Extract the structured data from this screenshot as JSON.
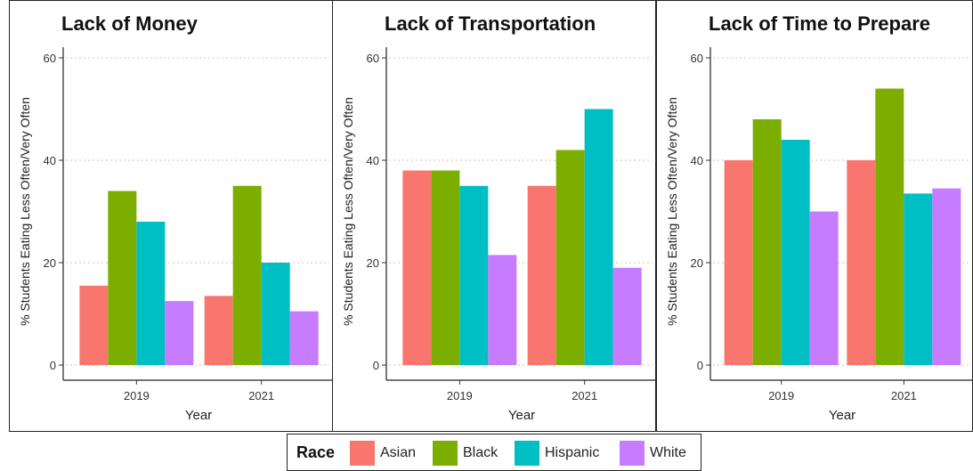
{
  "chart_data": [
    {
      "type": "bar",
      "title": "Lack of Money",
      "xlabel": "Year",
      "ylabel": "% Students Eating Less Often/Very Often",
      "categories": [
        "2019",
        "2021"
      ],
      "yticks": [
        "0",
        "20",
        "40",
        "60"
      ],
      "ylim": [
        0,
        62
      ],
      "grid": "horizontal dotted",
      "series": [
        {
          "name": "Asian",
          "values": [
            15.5,
            13.5
          ]
        },
        {
          "name": "Black",
          "values": [
            34,
            35
          ]
        },
        {
          "name": "Hispanic",
          "values": [
            28,
            20
          ]
        },
        {
          "name": "White",
          "values": [
            12.5,
            10.5
          ]
        }
      ]
    },
    {
      "type": "bar",
      "title": "Lack of Transportation",
      "xlabel": "Year",
      "ylabel": "% Students Eating Less Often/Very Often",
      "categories": [
        "2019",
        "2021"
      ],
      "yticks": [
        "0",
        "20",
        "40",
        "60"
      ],
      "ylim": [
        0,
        62
      ],
      "grid": "horizontal dotted",
      "series": [
        {
          "name": "Asian",
          "values": [
            38,
            35
          ]
        },
        {
          "name": "Black",
          "values": [
            38,
            42
          ]
        },
        {
          "name": "Hispanic",
          "values": [
            35,
            50
          ]
        },
        {
          "name": "White",
          "values": [
            21.5,
            19
          ]
        }
      ]
    },
    {
      "type": "bar",
      "title": "Lack of Time to Prepare",
      "xlabel": "Year",
      "ylabel": "% Students Eating Less Often/Very Often",
      "categories": [
        "2019",
        "2021"
      ],
      "yticks": [
        "0",
        "20",
        "40",
        "60"
      ],
      "ylim": [
        0,
        62
      ],
      "grid": "horizontal dotted",
      "series": [
        {
          "name": "Asian",
          "values": [
            40,
            40
          ]
        },
        {
          "name": "Black",
          "values": [
            48,
            54
          ]
        },
        {
          "name": "Hispanic",
          "values": [
            44,
            33.5
          ]
        },
        {
          "name": "White",
          "values": [
            30,
            34.5
          ]
        }
      ]
    }
  ],
  "legend": {
    "title": "Race",
    "position": "bottom",
    "items": [
      {
        "label": "Asian",
        "color": "#F8766D"
      },
      {
        "label": "Black",
        "color": "#7CAE00"
      },
      {
        "label": "Hispanic",
        "color": "#00BFC4"
      },
      {
        "label": "White",
        "color": "#C77CFF"
      }
    ]
  }
}
